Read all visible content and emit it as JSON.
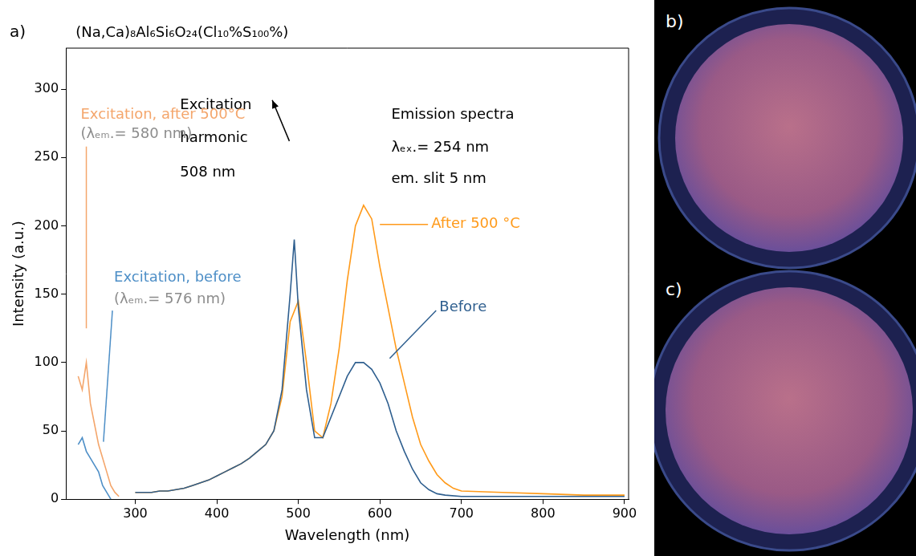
{
  "chart_data": {
    "type": "line",
    "panel_label": "a)",
    "title": "(Na,Ca)₈Al₆Si₆O₂₄(Cl₁₀%S₁₀₀%)",
    "x_label": "Wavelength (nm)",
    "y_label": "Intensity (a.u.)",
    "xlim": [
      215,
      905
    ],
    "xticks": [
      300,
      400,
      500,
      600,
      700,
      800,
      900
    ],
    "ylim": [
      0,
      330
    ],
    "yticks": [
      0,
      50,
      100,
      150,
      200,
      250,
      300
    ],
    "grid": false,
    "series": [
      {
        "name": "Excitation, after 500°C",
        "color": "#f4a66c",
        "x": [
          230,
          235,
          240,
          245,
          250,
          255,
          260,
          265,
          270,
          275,
          280
        ],
        "values": [
          90,
          80,
          100,
          70,
          55,
          40,
          30,
          20,
          10,
          5,
          2
        ]
      },
      {
        "name": "Excitation, before",
        "color": "#4e8fc7",
        "x": [
          230,
          235,
          240,
          245,
          250,
          255,
          260,
          265,
          270
        ],
        "values": [
          40,
          45,
          35,
          30,
          25,
          20,
          10,
          5,
          0
        ]
      },
      {
        "name": "Before",
        "color": "#2f5f8f",
        "x": [
          300,
          310,
          320,
          330,
          340,
          350,
          360,
          370,
          380,
          390,
          400,
          410,
          420,
          430,
          440,
          450,
          460,
          470,
          480,
          490,
          495,
          500,
          510,
          520,
          530,
          540,
          550,
          560,
          570,
          580,
          590,
          600,
          610,
          620,
          630,
          640,
          650,
          660,
          670,
          680,
          700,
          750,
          800,
          850,
          900
        ],
        "values": [
          5,
          5,
          5,
          6,
          6,
          7,
          8,
          10,
          12,
          14,
          17,
          20,
          23,
          26,
          30,
          35,
          40,
          50,
          80,
          150,
          190,
          140,
          80,
          45,
          45,
          60,
          75,
          90,
          100,
          100,
          95,
          85,
          70,
          50,
          35,
          22,
          12,
          7,
          4,
          3,
          2,
          2,
          2,
          2,
          2
        ]
      },
      {
        "name": "After 500 °C",
        "color": "#ff9a1a",
        "x": [
          300,
          310,
          320,
          330,
          340,
          350,
          360,
          370,
          380,
          390,
          400,
          410,
          420,
          430,
          440,
          450,
          460,
          470,
          480,
          490,
          500,
          510,
          520,
          530,
          540,
          550,
          560,
          570,
          580,
          590,
          600,
          610,
          620,
          630,
          640,
          650,
          660,
          670,
          680,
          690,
          700,
          750,
          800,
          850,
          900
        ],
        "values": [
          5,
          5,
          5,
          6,
          6,
          7,
          8,
          10,
          12,
          14,
          17,
          20,
          23,
          26,
          30,
          35,
          40,
          50,
          75,
          130,
          145,
          100,
          50,
          45,
          70,
          110,
          160,
          200,
          215,
          205,
          170,
          140,
          110,
          85,
          60,
          40,
          28,
          18,
          12,
          8,
          6,
          5,
          4,
          3,
          3
        ]
      }
    ],
    "annotations": [
      "Excitation",
      "harmonic",
      "508 nm",
      "Emission spectra",
      "λₑₓ.= 254 nm",
      "em. slit 5 nm",
      "(λₑₘ.= 580 nm)",
      "(λₑₘ.= 576 nm)"
    ]
  },
  "images": [
    {
      "label": "b)"
    },
    {
      "label": "c)"
    }
  ]
}
